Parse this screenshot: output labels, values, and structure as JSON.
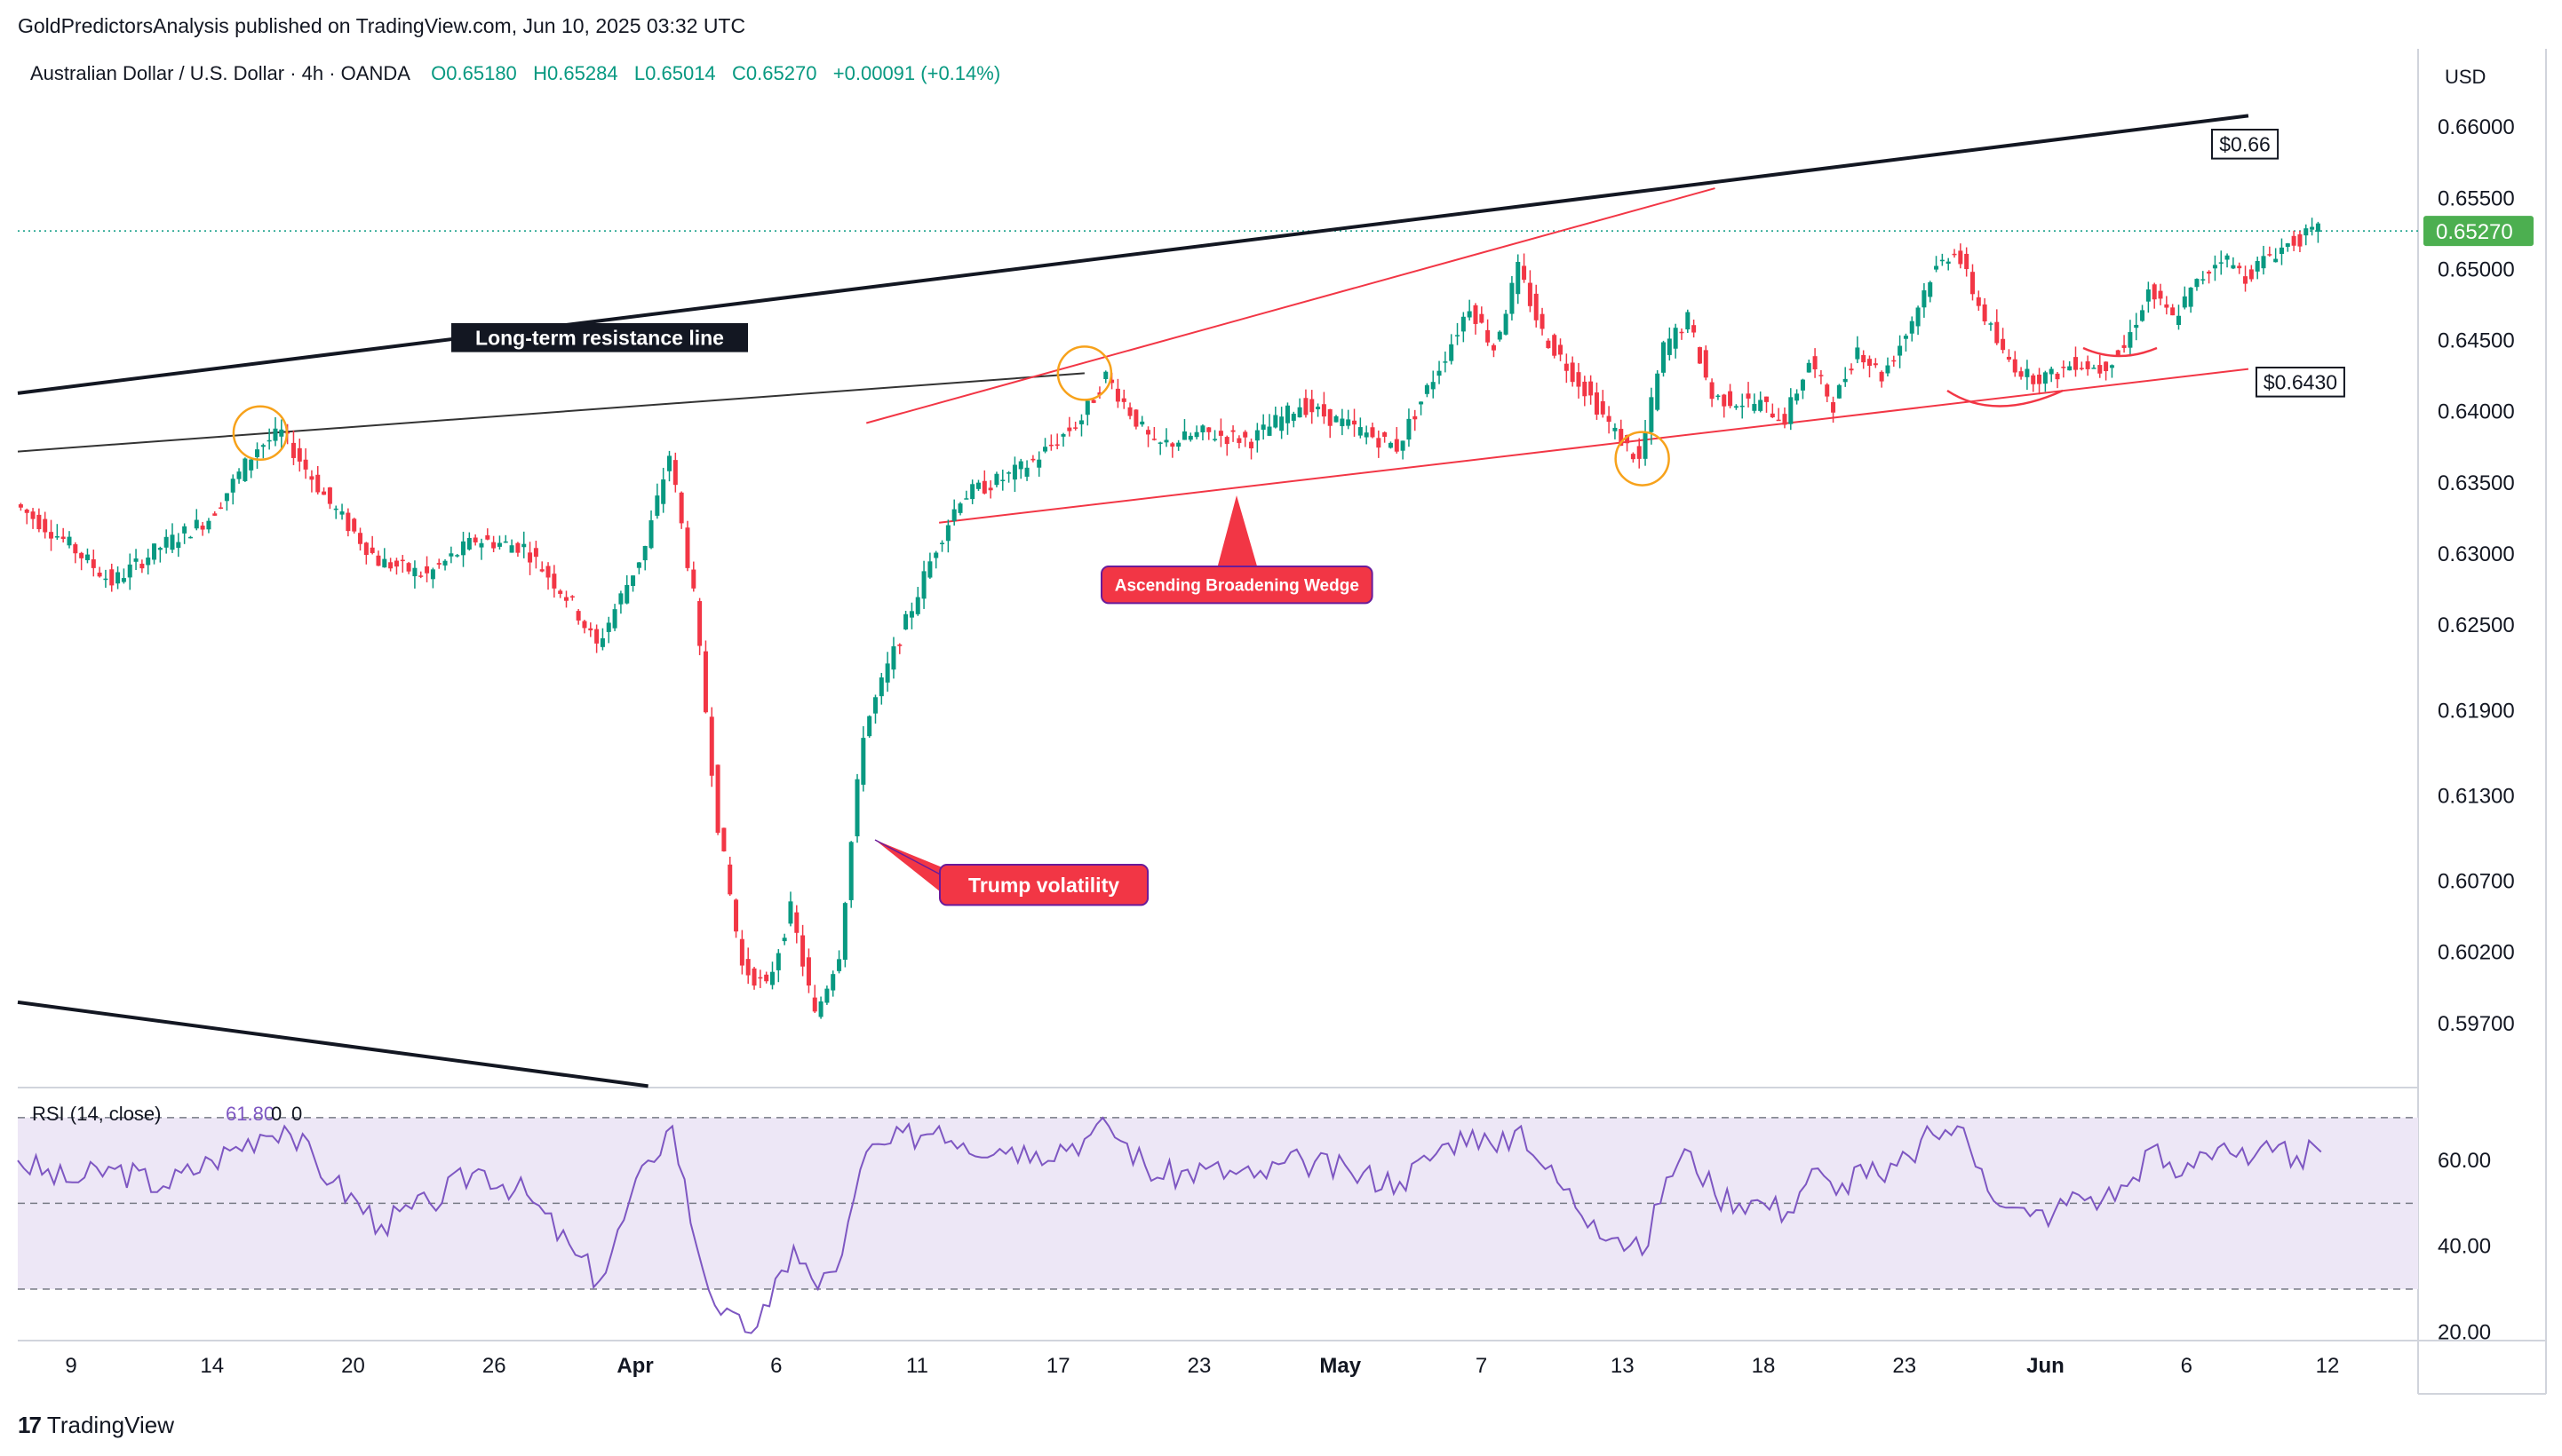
{
  "header": {
    "publisher_line": "GoldPredictorsAnalysis published on TradingView.com, Jun 10, 2025 03:32 UTC",
    "symbol": "Australian Dollar / U.S. Dollar · 4h · OANDA",
    "open": "O0.65180",
    "high": "H0.65284",
    "low": "L0.65014",
    "close": "C0.65270",
    "change": "+0.00091 (+0.14%)"
  },
  "currency_label": "USD",
  "footer": {
    "brand": "TradingView"
  },
  "colors": {
    "bull": "#089981",
    "bear": "#f23645",
    "resistance": "#131722",
    "wedge": "#f23645",
    "callout_bg": "#f23645",
    "circle": "#f7a21b",
    "rsi_line": "#7e57c2",
    "rsi_band": "#ede7f6",
    "price_tag": "#4caf50"
  },
  "chart_data": [
    {
      "type": "candlestick",
      "title": "Australian Dollar / U.S. Dollar · 4h · OANDA",
      "y_axis": {
        "ticks": [
          0.66,
          0.655,
          0.65,
          0.645,
          0.64,
          0.635,
          0.63,
          0.625,
          0.619,
          0.613,
          0.607,
          0.602,
          0.597
        ],
        "tick_labels": [
          "0.66000",
          "0.65500",
          "0.65000",
          "0.64500",
          "0.64000",
          "0.63500",
          "0.63000",
          "0.62500",
          "0.61900",
          "0.61300",
          "0.60700",
          "0.60200",
          "0.59700"
        ],
        "range": [
          0.5925,
          0.6655
        ],
        "side": "right"
      },
      "x_axis": {
        "tick_labels": [
          "9",
          "14",
          "20",
          "26",
          "Apr",
          "6",
          "11",
          "17",
          "23",
          "May",
          "7",
          "13",
          "18",
          "23",
          "Jun",
          "6",
          "12"
        ],
        "bold_labels": [
          "Apr",
          "May",
          "Jun"
        ],
        "range": [
          "2025-03-07",
          "2025-06-14"
        ]
      },
      "last_price": {
        "value": 0.6527,
        "label": "0.65270"
      },
      "price_path": [
        {
          "date": "2025-03-07",
          "close": 0.6335
        },
        {
          "date": "2025-03-09",
          "close": 0.631
        },
        {
          "date": "2025-03-11",
          "close": 0.628
        },
        {
          "date": "2025-03-13",
          "close": 0.6305
        },
        {
          "date": "2025-03-15",
          "close": 0.6325
        },
        {
          "date": "2025-03-17",
          "close": 0.6375
        },
        {
          "date": "2025-03-18",
          "close": 0.6385
        },
        {
          "date": "2025-03-20",
          "close": 0.6335
        },
        {
          "date": "2025-03-22",
          "close": 0.6295
        },
        {
          "date": "2025-03-24",
          "close": 0.6285
        },
        {
          "date": "2025-03-26",
          "close": 0.631
        },
        {
          "date": "2025-03-28",
          "close": 0.6305
        },
        {
          "date": "2025-03-30",
          "close": 0.6265
        },
        {
          "date": "2025-03-31",
          "close": 0.6235
        },
        {
          "date": "2025-04-02",
          "close": 0.6305
        },
        {
          "date": "2025-04-03",
          "close": 0.637
        },
        {
          "date": "2025-04-04",
          "close": 0.627
        },
        {
          "date": "2025-04-05",
          "close": 0.611
        },
        {
          "date": "2025-04-06",
          "close": 0.601
        },
        {
          "date": "2025-04-07",
          "close": 0.5995
        },
        {
          "date": "2025-04-08",
          "close": 0.605
        },
        {
          "date": "2025-04-09",
          "close": 0.5975
        },
        {
          "date": "2025-04-10",
          "close": 0.602
        },
        {
          "date": "2025-04-11",
          "close": 0.6175
        },
        {
          "date": "2025-04-12",
          "close": 0.622
        },
        {
          "date": "2025-04-14",
          "close": 0.6305
        },
        {
          "date": "2025-04-15",
          "close": 0.634
        },
        {
          "date": "2025-04-17",
          "close": 0.6355
        },
        {
          "date": "2025-04-18",
          "close": 0.6365
        },
        {
          "date": "2025-04-20",
          "close": 0.6395
        },
        {
          "date": "2025-04-21",
          "close": 0.6425
        },
        {
          "date": "2025-04-23",
          "close": 0.6375
        },
        {
          "date": "2025-04-25",
          "close": 0.6385
        },
        {
          "date": "2025-04-27",
          "close": 0.638
        },
        {
          "date": "2025-04-29",
          "close": 0.6405
        },
        {
          "date": "2025-05-01",
          "close": 0.639
        },
        {
          "date": "2025-05-03",
          "close": 0.6375
        },
        {
          "date": "2025-05-05",
          "close": 0.644
        },
        {
          "date": "2025-05-06",
          "close": 0.6475
        },
        {
          "date": "2025-05-07",
          "close": 0.6445
        },
        {
          "date": "2025-05-08",
          "close": 0.65
        },
        {
          "date": "2025-05-09",
          "close": 0.6455
        },
        {
          "date": "2025-05-11",
          "close": 0.641
        },
        {
          "date": "2025-05-12",
          "close": 0.6385
        },
        {
          "date": "2025-05-13",
          "close": 0.6365
        },
        {
          "date": "2025-05-14",
          "close": 0.6445
        },
        {
          "date": "2025-05-15",
          "close": 0.6465
        },
        {
          "date": "2025-05-16",
          "close": 0.641
        },
        {
          "date": "2025-05-18",
          "close": 0.6405
        },
        {
          "date": "2025-05-19",
          "close": 0.6395
        },
        {
          "date": "2025-05-20",
          "close": 0.6435
        },
        {
          "date": "2025-05-21",
          "close": 0.6405
        },
        {
          "date": "2025-05-22",
          "close": 0.6445
        },
        {
          "date": "2025-05-23",
          "close": 0.6425
        },
        {
          "date": "2025-05-24",
          "close": 0.6455
        },
        {
          "date": "2025-05-25",
          "close": 0.6495
        },
        {
          "date": "2025-05-26",
          "close": 0.6515
        },
        {
          "date": "2025-05-27",
          "close": 0.6475
        },
        {
          "date": "2025-05-28",
          "close": 0.644
        },
        {
          "date": "2025-05-29",
          "close": 0.6425
        },
        {
          "date": "2025-05-30",
          "close": 0.6425
        },
        {
          "date": "2025-05-31",
          "close": 0.6435
        },
        {
          "date": "2025-06-01",
          "close": 0.643
        },
        {
          "date": "2025-06-02",
          "close": 0.6445
        },
        {
          "date": "2025-06-03",
          "close": 0.6485
        },
        {
          "date": "2025-06-04",
          "close": 0.6465
        },
        {
          "date": "2025-06-05",
          "close": 0.649
        },
        {
          "date": "2025-06-06",
          "close": 0.651
        },
        {
          "date": "2025-06-07",
          "close": 0.6495
        },
        {
          "date": "2025-06-08",
          "close": 0.651
        },
        {
          "date": "2025-06-09",
          "close": 0.652
        },
        {
          "date": "2025-06-10",
          "close": 0.6527
        }
      ],
      "annotations": {
        "resistance_label": "Long-term resistance line",
        "resistance_price_label": "$0.66",
        "support_price_label": "$0.6430",
        "wedge_label": "Ascending Broadening Wedge",
        "volatility_label": "Trump volatility",
        "resistance_line": [
          {
            "date": "2025-03-07",
            "price": 0.6413
          },
          {
            "date": "2025-06-07",
            "price": 0.6608
          }
        ],
        "thin_resistance_line": [
          {
            "date": "2025-03-07",
            "price": 0.6372
          },
          {
            "date": "2025-04-20",
            "price": 0.6427
          }
        ],
        "lower_black_line": [
          {
            "date": "2025-03-07",
            "price": 0.5985
          },
          {
            "date": "2025-04-02",
            "price": 0.5926
          }
        ],
        "wedge_upper": [
          {
            "date": "2025-04-11",
            "price": 0.6392
          },
          {
            "date": "2025-05-16",
            "price": 0.6557
          }
        ],
        "wedge_lower": [
          {
            "date": "2025-04-14",
            "price": 0.6322
          },
          {
            "date": "2025-06-07",
            "price": 0.643
          }
        ],
        "circles": [
          {
            "date": "2025-03-17",
            "price": 0.6385
          },
          {
            "date": "2025-04-20",
            "price": 0.6427
          },
          {
            "date": "2025-05-13",
            "price": 0.6367
          }
        ]
      }
    },
    {
      "type": "line",
      "title": "RSI (14, close)",
      "value_label": "61.80",
      "extra_labels": [
        "0",
        "0"
      ],
      "y_axis": {
        "ticks": [
          60,
          40,
          20
        ],
        "tick_labels": [
          "60.00",
          "40.00",
          "20.00"
        ],
        "range": [
          18,
          77
        ]
      },
      "bands": {
        "upper": 70,
        "middle": 50,
        "lower": 30
      },
      "x": [
        "2025-03-07",
        "2025-03-09",
        "2025-03-11",
        "2025-03-13",
        "2025-03-15",
        "2025-03-17",
        "2025-03-18",
        "2025-03-20",
        "2025-03-22",
        "2025-03-24",
        "2025-03-26",
        "2025-03-28",
        "2025-03-30",
        "2025-03-31",
        "2025-04-02",
        "2025-04-03",
        "2025-04-04",
        "2025-04-05",
        "2025-04-06",
        "2025-04-07",
        "2025-04-08",
        "2025-04-09",
        "2025-04-10",
        "2025-04-11",
        "2025-04-12",
        "2025-04-14",
        "2025-04-15",
        "2025-04-17",
        "2025-04-18",
        "2025-04-20",
        "2025-04-21",
        "2025-04-23",
        "2025-04-25",
        "2025-04-27",
        "2025-04-29",
        "2025-05-01",
        "2025-05-03",
        "2025-05-05",
        "2025-05-06",
        "2025-05-07",
        "2025-05-08",
        "2025-05-09",
        "2025-05-11",
        "2025-05-12",
        "2025-05-13",
        "2025-05-14",
        "2025-05-15",
        "2025-05-16",
        "2025-05-18",
        "2025-05-19",
        "2025-05-20",
        "2025-05-21",
        "2025-05-22",
        "2025-05-23",
        "2025-05-24",
        "2025-05-25",
        "2025-05-26",
        "2025-05-27",
        "2025-05-28",
        "2025-05-29",
        "2025-05-30",
        "2025-05-31",
        "2025-06-01",
        "2025-06-02",
        "2025-06-03",
        "2025-06-04",
        "2025-06-05",
        "2025-06-06",
        "2025-06-07",
        "2025-06-08",
        "2025-06-09",
        "2025-06-10"
      ],
      "values": [
        60,
        55,
        58,
        54,
        60,
        66,
        68,
        55,
        45,
        50,
        58,
        52,
        38,
        32,
        60,
        68,
        40,
        24,
        20,
        26,
        40,
        30,
        38,
        62,
        64,
        68,
        64,
        63,
        62,
        65,
        68,
        56,
        58,
        56,
        60,
        57,
        55,
        64,
        67,
        62,
        68,
        58,
        46,
        42,
        38,
        56,
        62,
        52,
        50,
        48,
        58,
        52,
        59,
        55,
        61,
        66,
        68,
        58,
        49,
        47,
        48,
        52,
        51,
        54,
        63,
        56,
        62,
        64,
        59,
        62,
        61,
        62
      ]
    }
  ]
}
